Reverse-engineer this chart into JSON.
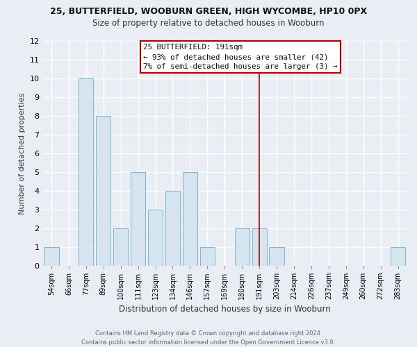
{
  "title": "25, BUTTERFIELD, WOOBURN GREEN, HIGH WYCOMBE, HP10 0PX",
  "subtitle": "Size of property relative to detached houses in Wooburn",
  "xlabel": "Distribution of detached houses by size in Wooburn",
  "ylabel": "Number of detached properties",
  "bins": [
    "54sqm",
    "66sqm",
    "77sqm",
    "89sqm",
    "100sqm",
    "111sqm",
    "123sqm",
    "134sqm",
    "146sqm",
    "157sqm",
    "169sqm",
    "180sqm",
    "191sqm",
    "203sqm",
    "214sqm",
    "226sqm",
    "237sqm",
    "249sqm",
    "260sqm",
    "272sqm",
    "283sqm"
  ],
  "counts": [
    1,
    0,
    10,
    8,
    2,
    5,
    3,
    4,
    5,
    1,
    0,
    2,
    2,
    1,
    0,
    0,
    0,
    0,
    0,
    0,
    1
  ],
  "bar_color": "#d6e4f0",
  "bar_edge_color": "#7fb3d3",
  "vline_x_index": 12,
  "vline_color": "#aa0000",
  "ylim": [
    0,
    12
  ],
  "yticks": [
    0,
    1,
    2,
    3,
    4,
    5,
    6,
    7,
    8,
    9,
    10,
    11,
    12
  ],
  "annotation_title": "25 BUTTERFIELD: 191sqm",
  "annotation_line1": "← 93% of detached houses are smaller (42)",
  "annotation_line2": "7% of semi-detached houses are larger (3) →",
  "annotation_box_color": "#ffffff",
  "annotation_box_edge_color": "#aa0000",
  "footer_line1": "Contains HM Land Registry data © Crown copyright and database right 2024.",
  "footer_line2": "Contains public sector information licensed under the Open Government Licence v3.0.",
  "background_color": "#e8eef4",
  "grid_color": "#ffffff"
}
